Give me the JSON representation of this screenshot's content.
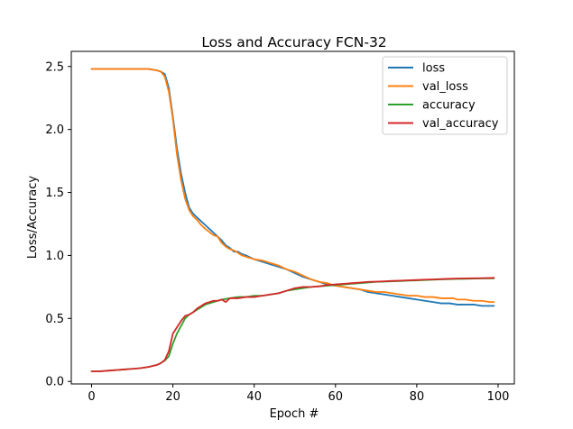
{
  "chart_data": {
    "type": "line",
    "title": "Loss and Accuracy FCN-32",
    "xlabel": "Epoch #",
    "ylabel": "Loss/Accuracy",
    "xlim": [
      -5,
      104
    ],
    "ylim": [
      -0.02,
      2.62
    ],
    "xticks": [
      0,
      20,
      40,
      60,
      80,
      100
    ],
    "xtick_labels": [
      "0",
      "20",
      "40",
      "60",
      "80",
      "100"
    ],
    "yticks": [
      0.0,
      0.5,
      1.0,
      1.5,
      2.0,
      2.5
    ],
    "ytick_labels": [
      "0.0",
      "0.5",
      "1.0",
      "1.5",
      "2.0",
      "2.5"
    ],
    "grid": false,
    "legend_position": "top-right",
    "series": [
      {
        "name": "loss",
        "color": "#1f77b4",
        "x": [
          0,
          2,
          4,
          6,
          8,
          10,
          12,
          14,
          16,
          17,
          18,
          19,
          20,
          21,
          22,
          23,
          24,
          25,
          26,
          27,
          28,
          30,
          32,
          33,
          34,
          35,
          36,
          37,
          38,
          40,
          42,
          44,
          46,
          48,
          50,
          52,
          54,
          56,
          58,
          60,
          62,
          64,
          66,
          68,
          70,
          72,
          74,
          76,
          78,
          80,
          82,
          84,
          86,
          88,
          90,
          92,
          94,
          96,
          98,
          99
        ],
        "y": [
          2.48,
          2.48,
          2.48,
          2.48,
          2.48,
          2.48,
          2.48,
          2.48,
          2.47,
          2.46,
          2.44,
          2.33,
          2.1,
          1.85,
          1.65,
          1.5,
          1.38,
          1.33,
          1.3,
          1.27,
          1.24,
          1.18,
          1.12,
          1.08,
          1.06,
          1.03,
          1.03,
          1.01,
          1.0,
          0.97,
          0.95,
          0.93,
          0.91,
          0.89,
          0.86,
          0.83,
          0.81,
          0.79,
          0.77,
          0.76,
          0.75,
          0.74,
          0.73,
          0.71,
          0.7,
          0.69,
          0.68,
          0.67,
          0.66,
          0.65,
          0.64,
          0.63,
          0.62,
          0.62,
          0.61,
          0.61,
          0.61,
          0.6,
          0.6,
          0.6
        ]
      },
      {
        "name": "val_loss",
        "color": "#ff7f0e",
        "x": [
          0,
          2,
          4,
          6,
          8,
          10,
          12,
          14,
          16,
          17,
          18,
          19,
          20,
          21,
          22,
          23,
          24,
          25,
          26,
          27,
          28,
          30,
          31,
          32,
          33,
          34,
          35,
          36,
          37,
          38,
          40,
          42,
          44,
          45,
          46,
          48,
          50,
          52,
          54,
          56,
          58,
          60,
          62,
          64,
          66,
          68,
          70,
          72,
          74,
          76,
          78,
          80,
          82,
          84,
          86,
          88,
          89,
          90,
          92,
          94,
          96,
          98,
          99
        ],
        "y": [
          2.48,
          2.48,
          2.48,
          2.48,
          2.48,
          2.48,
          2.48,
          2.48,
          2.47,
          2.46,
          2.42,
          2.3,
          2.08,
          1.8,
          1.6,
          1.45,
          1.36,
          1.31,
          1.28,
          1.24,
          1.21,
          1.16,
          1.15,
          1.1,
          1.07,
          1.05,
          1.04,
          1.02,
          1.0,
          0.99,
          0.97,
          0.96,
          0.94,
          0.93,
          0.92,
          0.89,
          0.87,
          0.84,
          0.81,
          0.79,
          0.78,
          0.76,
          0.75,
          0.74,
          0.73,
          0.72,
          0.71,
          0.71,
          0.7,
          0.69,
          0.68,
          0.68,
          0.67,
          0.67,
          0.66,
          0.66,
          0.66,
          0.65,
          0.65,
          0.64,
          0.64,
          0.63,
          0.63
        ]
      },
      {
        "name": "accuracy",
        "color": "#2ca02c",
        "x": [
          0,
          2,
          4,
          6,
          8,
          10,
          12,
          14,
          16,
          17,
          18,
          19,
          20,
          21,
          22,
          23,
          24,
          25,
          26,
          27,
          28,
          30,
          32,
          34,
          36,
          38,
          40,
          42,
          44,
          46,
          48,
          50,
          52,
          54,
          56,
          58,
          60,
          62,
          64,
          66,
          68,
          70,
          72,
          74,
          76,
          78,
          80,
          82,
          84,
          86,
          88,
          90,
          92,
          94,
          96,
          98,
          99
        ],
        "y": [
          0.08,
          0.08,
          0.085,
          0.09,
          0.095,
          0.1,
          0.105,
          0.115,
          0.13,
          0.145,
          0.165,
          0.2,
          0.3,
          0.38,
          0.44,
          0.5,
          0.53,
          0.55,
          0.57,
          0.59,
          0.61,
          0.63,
          0.65,
          0.66,
          0.67,
          0.67,
          0.68,
          0.68,
          0.69,
          0.7,
          0.72,
          0.73,
          0.74,
          0.75,
          0.755,
          0.76,
          0.765,
          0.77,
          0.775,
          0.78,
          0.785,
          0.79,
          0.792,
          0.795,
          0.797,
          0.8,
          0.802,
          0.805,
          0.807,
          0.81,
          0.812,
          0.814,
          0.815,
          0.816,
          0.817,
          0.818,
          0.818
        ]
      },
      {
        "name": "val_accuracy",
        "color": "#d62728",
        "x": [
          0,
          2,
          4,
          6,
          8,
          10,
          12,
          14,
          16,
          17,
          18,
          19,
          20,
          21,
          22,
          23,
          24,
          25,
          26,
          27,
          28,
          30,
          31,
          32,
          33,
          34,
          36,
          38,
          40,
          42,
          44,
          46,
          48,
          50,
          52,
          54,
          56,
          58,
          60,
          62,
          64,
          66,
          68,
          70,
          72,
          74,
          76,
          78,
          80,
          82,
          84,
          86,
          88,
          90,
          92,
          94,
          96,
          98,
          99
        ],
        "y": [
          0.08,
          0.08,
          0.085,
          0.09,
          0.095,
          0.1,
          0.105,
          0.115,
          0.13,
          0.145,
          0.17,
          0.24,
          0.38,
          0.43,
          0.48,
          0.52,
          0.53,
          0.55,
          0.58,
          0.6,
          0.62,
          0.64,
          0.64,
          0.65,
          0.63,
          0.66,
          0.66,
          0.67,
          0.67,
          0.68,
          0.69,
          0.7,
          0.72,
          0.74,
          0.75,
          0.75,
          0.755,
          0.765,
          0.77,
          0.775,
          0.78,
          0.785,
          0.79,
          0.792,
          0.795,
          0.798,
          0.8,
          0.803,
          0.805,
          0.808,
          0.81,
          0.812,
          0.815,
          0.817,
          0.818,
          0.819,
          0.82,
          0.821,
          0.822
        ]
      }
    ]
  }
}
